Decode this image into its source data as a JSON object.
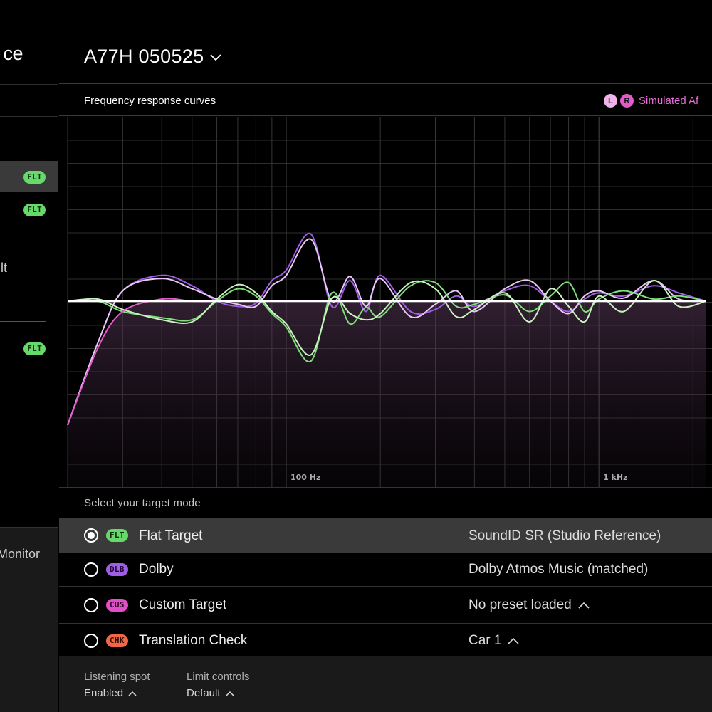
{
  "sidebar": {
    "logo_text": "ce",
    "rows": [
      {
        "badge": "FLT",
        "text": "",
        "selected": true
      },
      {
        "badge": "FLT",
        "text": "",
        "selected": false
      },
      {
        "badge": "",
        "text": "lt",
        "selected": false
      },
      {
        "badge": "FLT",
        "text": "",
        "selected": false
      }
    ],
    "monitor_label": "Monitor"
  },
  "header": {
    "device_name": "A77H 050525"
  },
  "chart_section": {
    "title": "Frequency response curves",
    "legend_left": "L",
    "legend_right": "R",
    "legend_label": "Simulated Af"
  },
  "chart_data": {
    "type": "line",
    "xscale": "log",
    "x_tick_labels": [
      "100 Hz",
      "1 kHz"
    ],
    "x_tick_values": [
      100,
      1000
    ],
    "xlim": [
      20,
      2300
    ],
    "ylim": [
      -12,
      12
    ],
    "grid": true,
    "series": [
      {
        "color": "#a25de6",
        "x": [
          20,
          25,
          30,
          40,
          50,
          60,
          70,
          80,
          90,
          100,
          120,
          140,
          160,
          180,
          200,
          250,
          300,
          350,
          400,
          500,
          600,
          700,
          800,
          900,
          1000,
          1200,
          1500,
          1800,
          2200
        ],
        "y": [
          -12,
          -4,
          1,
          2.5,
          1.5,
          0,
          -0.5,
          -0.2,
          2,
          3,
          6.5,
          -0.5,
          2,
          -1,
          2.5,
          -1,
          -0.8,
          0.5,
          -0.5,
          1,
          1.5,
          0,
          -1,
          0.2,
          0.8,
          0.5,
          1.5,
          0.8,
          0
        ]
      },
      {
        "color": "#e8c8f5",
        "x": [
          20,
          25,
          30,
          40,
          50,
          60,
          70,
          80,
          90,
          100,
          120,
          140,
          160,
          180,
          200,
          250,
          300,
          350,
          400,
          500,
          600,
          700,
          800,
          900,
          1000,
          1200,
          1500,
          1800,
          2200
        ],
        "y": [
          -12,
          -4,
          1,
          2.2,
          1.2,
          0.2,
          -0.3,
          -0.5,
          1.5,
          2.5,
          6,
          0,
          2.4,
          -0.5,
          2.2,
          -1.5,
          -0.3,
          1,
          -1,
          1.2,
          2,
          0,
          -1.2,
          0.5,
          1,
          0.3,
          2,
          0.2,
          0
        ]
      },
      {
        "color": "#7fe07a",
        "x": [
          20,
          25,
          30,
          40,
          50,
          60,
          70,
          80,
          90,
          100,
          120,
          140,
          160,
          180,
          200,
          250,
          300,
          350,
          400,
          500,
          600,
          700,
          800,
          900,
          1000,
          1200,
          1500,
          1800,
          2200
        ],
        "y": [
          0,
          0,
          -1,
          -1.6,
          -1.8,
          0,
          1.2,
          0.5,
          -1.2,
          -2.5,
          -5.8,
          0.8,
          -2.2,
          -0.6,
          -1.5,
          1.5,
          1.8,
          -0.5,
          -0.3,
          0.6,
          -1,
          0.5,
          1.8,
          -1,
          0.2,
          1,
          0.2,
          0.5,
          0
        ]
      },
      {
        "color": "#c8f2c0",
        "x": [
          20,
          25,
          30,
          40,
          50,
          60,
          70,
          80,
          90,
          100,
          120,
          140,
          160,
          180,
          200,
          250,
          300,
          350,
          400,
          500,
          600,
          700,
          800,
          900,
          1000,
          1200,
          1500,
          1800,
          2200
        ],
        "y": [
          0,
          0.2,
          -0.8,
          -1.8,
          -2,
          0.2,
          1.6,
          0.8,
          -1,
          -2.2,
          -5.2,
          0.3,
          -1.2,
          -1.8,
          -1.2,
          1.8,
          1.2,
          -1.5,
          -0.8,
          0.8,
          -2,
          1.2,
          -0.5,
          -2,
          0.5,
          -1,
          2,
          -0.5,
          0
        ]
      },
      {
        "color": "#e15cc9",
        "x": [
          20,
          25,
          30,
          40,
          50,
          60,
          70,
          80,
          100,
          150,
          200,
          300,
          500,
          1000,
          2200
        ],
        "y": [
          -12,
          -4.5,
          -1,
          0.2,
          0,
          0,
          0,
          0,
          0,
          0,
          0,
          0,
          0,
          0,
          0
        ]
      },
      {
        "color": "#ffffff",
        "x": [
          20,
          2200
        ],
        "y": [
          0,
          0
        ]
      }
    ]
  },
  "target": {
    "heading": "Select your target mode",
    "modes": [
      {
        "badge": "FLT",
        "badge_class": "flt",
        "name": "Flat Target",
        "preset": "SoundID SR (Studio Reference)",
        "selected": true,
        "has_chevron": false
      },
      {
        "badge": "DLB",
        "badge_class": "dlb",
        "name": "Dolby",
        "preset": "Dolby Atmos Music (matched)",
        "selected": false,
        "has_chevron": false
      },
      {
        "badge": "CUS",
        "badge_class": "cus",
        "name": "Custom Target",
        "preset": "No preset loaded",
        "selected": false,
        "has_chevron": true
      },
      {
        "badge": "CHK",
        "badge_class": "chk",
        "name": "Translation Check",
        "preset": "Car 1",
        "selected": false,
        "has_chevron": true
      }
    ]
  },
  "footer": {
    "listening_spot_label": "Listening spot",
    "listening_spot_value": "Enabled",
    "limit_controls_label": "Limit controls",
    "limit_controls_value": "Default"
  },
  "colors": {
    "flt": "#66d96a",
    "dlb": "#a25de6",
    "cus": "#e04ec8",
    "chk": "#f06848",
    "legend": "#e86cd6"
  }
}
